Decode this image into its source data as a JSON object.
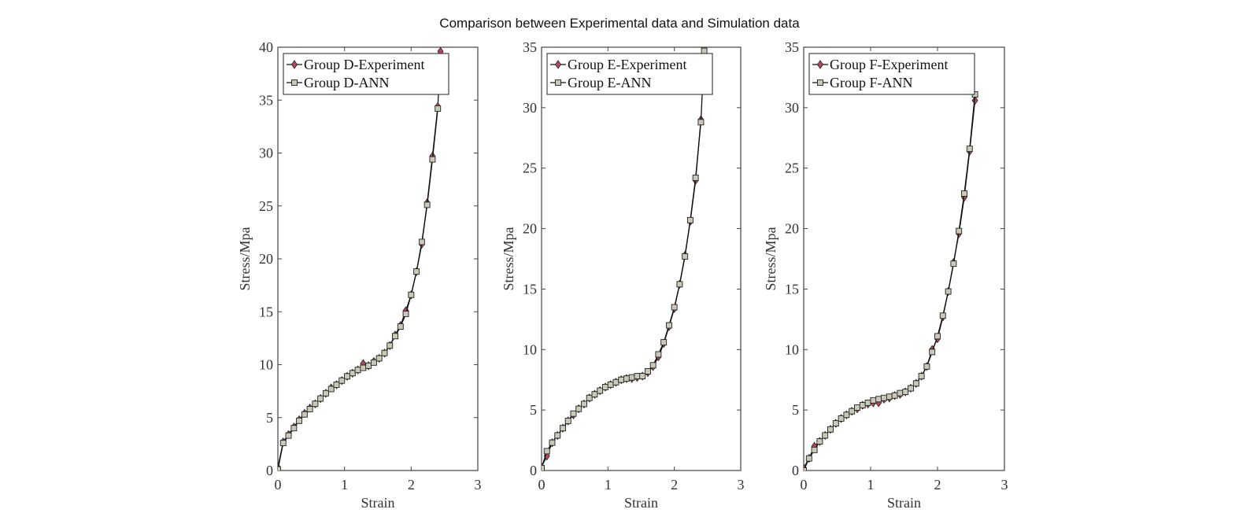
{
  "figure_title": "Comparison between Experimental data and Simulation data",
  "colors": {
    "experiment_marker": "#b5475e",
    "ann_marker": "#c9c9b8",
    "line": "#111111",
    "axis": "#444444"
  },
  "chart_data": [
    {
      "type": "line",
      "title": "",
      "xlabel": "Strain",
      "ylabel": "Stress/Mpa",
      "xlim": [
        0,
        3
      ],
      "ylim": [
        0,
        40
      ],
      "xticks": [
        "0",
        "1",
        "2",
        "3"
      ],
      "yticks": [
        "0",
        "5",
        "10",
        "15",
        "20",
        "25",
        "30",
        "35",
        "40"
      ],
      "xtick_values": [
        0,
        1,
        2,
        3
      ],
      "ytick_values": [
        0,
        5,
        10,
        15,
        20,
        25,
        30,
        35,
        40
      ],
      "legend_position": "top-left",
      "series": [
        {
          "name": "Group D-Experiment",
          "marker": "diamond",
          "x": [
            0.0,
            0.08,
            0.16,
            0.24,
            0.32,
            0.4,
            0.48,
            0.56,
            0.64,
            0.72,
            0.8,
            0.88,
            0.96,
            1.04,
            1.12,
            1.2,
            1.28,
            1.36,
            1.44,
            1.52,
            1.6,
            1.68,
            1.76,
            1.84,
            1.92,
            2.0,
            2.08,
            2.16,
            2.24,
            2.32,
            2.4,
            2.44
          ],
          "y": [
            0.3,
            2.7,
            3.4,
            4.1,
            4.8,
            5.4,
            5.9,
            6.3,
            6.8,
            7.3,
            7.8,
            8.1,
            8.5,
            8.9,
            9.2,
            9.5,
            10.1,
            9.9,
            10.3,
            10.6,
            11.1,
            11.8,
            12.8,
            13.7,
            15.1,
            16.6,
            18.8,
            21.4,
            25.3,
            29.7,
            34.4,
            39.6
          ]
        },
        {
          "name": "Group D-ANN",
          "marker": "square",
          "x": [
            0.0,
            0.08,
            0.16,
            0.24,
            0.32,
            0.4,
            0.48,
            0.56,
            0.64,
            0.72,
            0.8,
            0.88,
            0.96,
            1.04,
            1.12,
            1.2,
            1.28,
            1.36,
            1.44,
            1.52,
            1.6,
            1.68,
            1.76,
            1.84,
            1.92,
            2.0,
            2.08,
            2.16,
            2.24,
            2.32,
            2.4
          ],
          "y": [
            0.1,
            2.6,
            3.3,
            4.0,
            4.7,
            5.3,
            5.8,
            6.3,
            6.8,
            7.3,
            7.7,
            8.1,
            8.5,
            8.9,
            9.2,
            9.5,
            9.7,
            9.9,
            10.2,
            10.6,
            11.1,
            11.8,
            12.7,
            13.6,
            14.8,
            16.6,
            18.8,
            21.6,
            25.1,
            29.4,
            34.2
          ]
        }
      ]
    },
    {
      "type": "line",
      "title": "",
      "xlabel": "Strain",
      "ylabel": "Stress/Mpa",
      "xlim": [
        0,
        3
      ],
      "ylim": [
        0,
        35
      ],
      "xticks": [
        "0",
        "1",
        "2",
        "3"
      ],
      "yticks": [
        "0",
        "5",
        "10",
        "15",
        "20",
        "25",
        "30",
        "35"
      ],
      "xtick_values": [
        0,
        1,
        2,
        3
      ],
      "ytick_values": [
        0,
        5,
        10,
        15,
        20,
        25,
        30,
        35
      ],
      "legend_position": "top-left",
      "series": [
        {
          "name": "Group E-Experiment",
          "marker": "diamond",
          "x": [
            0.0,
            0.08,
            0.16,
            0.24,
            0.32,
            0.4,
            0.48,
            0.56,
            0.64,
            0.72,
            0.8,
            0.88,
            0.96,
            1.04,
            1.12,
            1.2,
            1.28,
            1.36,
            1.44,
            1.52,
            1.6,
            1.68,
            1.76,
            1.84,
            1.92,
            2.0,
            2.08,
            2.16,
            2.24,
            2.32,
            2.4
          ],
          "y": [
            0.3,
            1.2,
            2.3,
            2.9,
            3.5,
            4.1,
            4.6,
            5.1,
            5.5,
            6.0,
            6.3,
            6.6,
            6.9,
            7.1,
            7.3,
            7.5,
            7.6,
            7.6,
            7.7,
            7.8,
            8.1,
            8.6,
            9.4,
            10.5,
            11.9,
            13.4,
            15.4,
            17.8,
            20.6,
            24.0,
            29.0
          ]
        },
        {
          "name": "Group E-ANN",
          "marker": "square",
          "x": [
            0.0,
            0.08,
            0.16,
            0.24,
            0.32,
            0.4,
            0.48,
            0.56,
            0.64,
            0.72,
            0.8,
            0.88,
            0.96,
            1.04,
            1.12,
            1.2,
            1.28,
            1.36,
            1.44,
            1.52,
            1.6,
            1.68,
            1.76,
            1.84,
            1.92,
            2.0,
            2.08,
            2.16,
            2.24,
            2.32,
            2.4,
            2.45
          ],
          "y": [
            0.2,
            1.6,
            2.3,
            2.9,
            3.5,
            4.1,
            4.7,
            5.1,
            5.5,
            6.0,
            6.3,
            6.6,
            6.9,
            7.1,
            7.3,
            7.5,
            7.6,
            7.7,
            7.8,
            7.8,
            8.2,
            8.7,
            9.6,
            10.6,
            12.0,
            13.5,
            15.4,
            17.7,
            20.7,
            24.2,
            28.8,
            34.7
          ]
        }
      ]
    },
    {
      "type": "line",
      "title": "",
      "xlabel": "Strain",
      "ylabel": "Stress/Mpa",
      "xlim": [
        0,
        3
      ],
      "ylim": [
        0,
        35
      ],
      "xticks": [
        "0",
        "1",
        "2",
        "3"
      ],
      "yticks": [
        "0",
        "5",
        "10",
        "15",
        "20",
        "25",
        "30",
        "35"
      ],
      "xtick_values": [
        0,
        1,
        2,
        3
      ],
      "ytick_values": [
        0,
        5,
        10,
        15,
        20,
        25,
        30,
        35
      ],
      "legend_position": "top-left",
      "series": [
        {
          "name": "Group F-Experiment",
          "marker": "diamond",
          "x": [
            0.0,
            0.08,
            0.16,
            0.24,
            0.32,
            0.4,
            0.48,
            0.56,
            0.64,
            0.72,
            0.8,
            0.88,
            0.96,
            1.04,
            1.12,
            1.2,
            1.28,
            1.36,
            1.44,
            1.52,
            1.6,
            1.68,
            1.76,
            1.84,
            1.92,
            2.0,
            2.08,
            2.16,
            2.24,
            2.32,
            2.4,
            2.48,
            2.56
          ],
          "y": [
            0.2,
            1.0,
            2.0,
            2.4,
            2.9,
            3.4,
            3.9,
            4.3,
            4.6,
            4.9,
            5.1,
            5.4,
            5.5,
            5.6,
            5.6,
            5.9,
            6.0,
            6.2,
            6.3,
            6.5,
            6.8,
            7.2,
            7.8,
            8.6,
            10.0,
            10.9,
            12.7,
            14.8,
            17.2,
            19.6,
            22.6,
            26.4,
            30.6
          ]
        },
        {
          "name": "Group F-ANN",
          "marker": "square",
          "x": [
            0.0,
            0.08,
            0.16,
            0.24,
            0.32,
            0.4,
            0.48,
            0.56,
            0.64,
            0.72,
            0.8,
            0.88,
            0.96,
            1.04,
            1.12,
            1.2,
            1.28,
            1.36,
            1.44,
            1.52,
            1.6,
            1.68,
            1.76,
            1.84,
            1.92,
            2.0,
            2.08,
            2.16,
            2.24,
            2.32,
            2.4,
            2.48,
            2.56
          ],
          "y": [
            0.0,
            1.0,
            1.7,
            2.4,
            2.9,
            3.4,
            3.9,
            4.3,
            4.6,
            4.9,
            5.2,
            5.4,
            5.6,
            5.8,
            5.9,
            6.0,
            6.1,
            6.2,
            6.4,
            6.5,
            6.8,
            7.2,
            7.8,
            8.6,
            9.8,
            11.1,
            12.8,
            14.8,
            17.1,
            19.8,
            22.9,
            26.6,
            31.1
          ]
        }
      ]
    }
  ]
}
